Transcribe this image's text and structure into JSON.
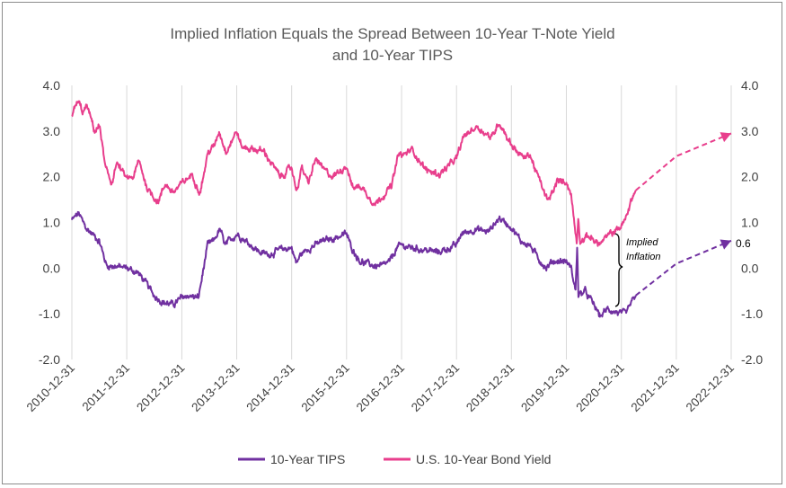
{
  "chart_data": {
    "type": "line",
    "title_line1": "Implied Inflation Equals the Spread Between 10-Year T-Note Yield",
    "title_line2": "and 10-Year TIPS",
    "ylim": [
      -2.0,
      4.0
    ],
    "y_ticks": [
      "4.0",
      "3.0",
      "2.0",
      "1.0",
      "0.0",
      "-1.0",
      "-2.0"
    ],
    "y_tick_values": [
      4.0,
      3.0,
      2.0,
      1.0,
      0.0,
      -1.0,
      -2.0
    ],
    "x_range": [
      "2010-12-31",
      "2022-12-31"
    ],
    "x_ticks": [
      "2010-12-31",
      "2011-12-31",
      "2012-12-31",
      "2013-12-31",
      "2014-12-31",
      "2015-12-31",
      "2016-12-31",
      "2017-12-31",
      "2018-12-31",
      "2019-12-31",
      "2020-12-31",
      "2021-12-31",
      "2022-12-31"
    ],
    "grid": "vertical",
    "legend_position": "bottom",
    "series": [
      {
        "name": "10-Year TIPS",
        "color": "#7030a0",
        "points": [
          [
            "2010-12-31",
            1.05
          ],
          [
            "2011-02-15",
            1.2
          ],
          [
            "2011-03-15",
            1.0
          ],
          [
            "2011-04-10",
            0.85
          ],
          [
            "2011-06-01",
            0.7
          ],
          [
            "2011-07-01",
            0.6
          ],
          [
            "2011-08-01",
            0.25
          ],
          [
            "2011-08-20",
            0.05
          ],
          [
            "2011-10-01",
            0.05
          ],
          [
            "2011-12-31",
            0.0
          ],
          [
            "2012-03-15",
            -0.1
          ],
          [
            "2012-05-01",
            -0.3
          ],
          [
            "2012-07-01",
            -0.6
          ],
          [
            "2012-09-01",
            -0.75
          ],
          [
            "2012-11-01",
            -0.8
          ],
          [
            "2012-12-31",
            -0.65
          ],
          [
            "2013-02-01",
            -0.6
          ],
          [
            "2013-04-20",
            -0.65
          ],
          [
            "2013-05-15",
            -0.2
          ],
          [
            "2013-06-20",
            0.5
          ],
          [
            "2013-08-01",
            0.6
          ],
          [
            "2013-09-10",
            0.85
          ],
          [
            "2013-10-15",
            0.5
          ],
          [
            "2013-12-31",
            0.75
          ],
          [
            "2014-03-01",
            0.6
          ],
          [
            "2014-06-01",
            0.35
          ],
          [
            "2014-08-01",
            0.3
          ],
          [
            "2014-10-15",
            0.4
          ],
          [
            "2014-12-31",
            0.45
          ],
          [
            "2015-02-01",
            0.1
          ],
          [
            "2015-03-01",
            0.3
          ],
          [
            "2015-05-01",
            0.45
          ],
          [
            "2015-08-01",
            0.6
          ],
          [
            "2015-10-01",
            0.65
          ],
          [
            "2015-12-31",
            0.75
          ],
          [
            "2016-02-01",
            0.45
          ],
          [
            "2016-04-01",
            0.15
          ],
          [
            "2016-07-01",
            0.05
          ],
          [
            "2016-09-01",
            0.05
          ],
          [
            "2016-10-15",
            0.15
          ],
          [
            "2016-12-01",
            0.45
          ],
          [
            "2016-12-31",
            0.5
          ],
          [
            "2017-03-01",
            0.45
          ],
          [
            "2017-06-01",
            0.4
          ],
          [
            "2017-09-01",
            0.35
          ],
          [
            "2017-12-31",
            0.5
          ],
          [
            "2018-02-01",
            0.75
          ],
          [
            "2018-05-01",
            0.85
          ],
          [
            "2018-08-01",
            0.8
          ],
          [
            "2018-10-10",
            1.1
          ],
          [
            "2018-12-31",
            0.9
          ],
          [
            "2019-03-01",
            0.6
          ],
          [
            "2019-05-01",
            0.5
          ],
          [
            "2019-07-01",
            0.2
          ],
          [
            "2019-08-20",
            0.0
          ],
          [
            "2019-10-01",
            0.15
          ],
          [
            "2019-12-31",
            0.15
          ],
          [
            "2020-02-01",
            0.0
          ],
          [
            "2020-03-01",
            -0.5
          ],
          [
            "2020-03-12",
            0.5
          ],
          [
            "2020-03-20",
            -0.6
          ],
          [
            "2020-05-01",
            -0.5
          ],
          [
            "2020-07-01",
            -0.8
          ],
          [
            "2020-08-10",
            -1.05
          ],
          [
            "2020-10-01",
            -0.9
          ],
          [
            "2020-12-31",
            -1.0
          ],
          [
            "2021-02-01",
            -1.0
          ],
          [
            "2021-03-01",
            -0.8
          ],
          [
            "2021-04-05",
            -0.6
          ]
        ]
      },
      {
        "name": "U.S. 10-Year Bond Yield",
        "color": "#e83e8c",
        "points": [
          [
            "2010-12-31",
            3.35
          ],
          [
            "2011-02-10",
            3.65
          ],
          [
            "2011-03-15",
            3.4
          ],
          [
            "2011-04-10",
            3.55
          ],
          [
            "2011-06-01",
            3.0
          ],
          [
            "2011-07-05",
            3.1
          ],
          [
            "2011-08-10",
            2.2
          ],
          [
            "2011-09-20",
            1.85
          ],
          [
            "2011-10-25",
            2.3
          ],
          [
            "2011-12-31",
            1.95
          ],
          [
            "2012-02-15",
            2.0
          ],
          [
            "2012-03-20",
            2.35
          ],
          [
            "2012-05-15",
            1.75
          ],
          [
            "2012-07-25",
            1.45
          ],
          [
            "2012-09-15",
            1.85
          ],
          [
            "2012-11-01",
            1.65
          ],
          [
            "2012-12-31",
            1.85
          ],
          [
            "2013-03-10",
            2.05
          ],
          [
            "2013-05-01",
            1.65
          ],
          [
            "2013-06-25",
            2.55
          ],
          [
            "2013-08-01",
            2.65
          ],
          [
            "2013-09-05",
            3.0
          ],
          [
            "2013-10-20",
            2.55
          ],
          [
            "2013-12-31",
            3.0
          ],
          [
            "2014-02-01",
            2.65
          ],
          [
            "2014-05-01",
            2.6
          ],
          [
            "2014-07-01",
            2.55
          ],
          [
            "2014-10-15",
            2.0
          ],
          [
            "2014-12-31",
            2.2
          ],
          [
            "2015-02-01",
            1.7
          ],
          [
            "2015-03-10",
            2.2
          ],
          [
            "2015-04-20",
            1.85
          ],
          [
            "2015-06-10",
            2.4
          ],
          [
            "2015-08-01",
            2.15
          ],
          [
            "2015-10-01",
            2.0
          ],
          [
            "2015-12-31",
            2.25
          ],
          [
            "2016-02-10",
            1.75
          ],
          [
            "2016-04-01",
            1.8
          ],
          [
            "2016-07-08",
            1.4
          ],
          [
            "2016-09-01",
            1.6
          ],
          [
            "2016-10-25",
            1.8
          ],
          [
            "2016-12-15",
            2.55
          ],
          [
            "2016-12-31",
            2.45
          ],
          [
            "2017-03-10",
            2.6
          ],
          [
            "2017-06-10",
            2.15
          ],
          [
            "2017-09-08",
            2.05
          ],
          [
            "2017-12-31",
            2.4
          ],
          [
            "2018-02-20",
            2.9
          ],
          [
            "2018-05-15",
            3.1
          ],
          [
            "2018-08-20",
            2.85
          ],
          [
            "2018-10-10",
            3.2
          ],
          [
            "2018-12-31",
            2.7
          ],
          [
            "2019-03-25",
            2.4
          ],
          [
            "2019-05-01",
            2.5
          ],
          [
            "2019-06-20",
            2.05
          ],
          [
            "2019-09-01",
            1.45
          ],
          [
            "2019-11-01",
            1.9
          ],
          [
            "2019-12-31",
            1.9
          ],
          [
            "2020-02-01",
            1.6
          ],
          [
            "2020-03-09",
            0.55
          ],
          [
            "2020-03-19",
            1.15
          ],
          [
            "2020-04-01",
            0.6
          ],
          [
            "2020-06-01",
            0.7
          ],
          [
            "2020-08-05",
            0.52
          ],
          [
            "2020-10-01",
            0.7
          ],
          [
            "2020-12-31",
            0.92
          ],
          [
            "2021-02-01",
            1.1
          ],
          [
            "2021-03-01",
            1.45
          ],
          [
            "2021-04-05",
            1.7
          ]
        ]
      }
    ],
    "projections": [
      {
        "name": "10-Year TIPS",
        "color": "#7030a0",
        "points": [
          [
            "2021-04-05",
            -0.6
          ],
          [
            "2021-12-31",
            0.1
          ],
          [
            "2022-12-31",
            0.6
          ]
        ]
      },
      {
        "name": "U.S. 10-Year Bond Yield",
        "color": "#e83e8c",
        "points": [
          [
            "2021-04-05",
            1.7
          ],
          [
            "2021-12-31",
            2.45
          ],
          [
            "2022-12-31",
            2.95
          ]
        ]
      }
    ],
    "annotations": {
      "implied_inflation_line1": "Implied",
      "implied_inflation_line2": "Inflation",
      "end_value_label": "0.6"
    }
  }
}
